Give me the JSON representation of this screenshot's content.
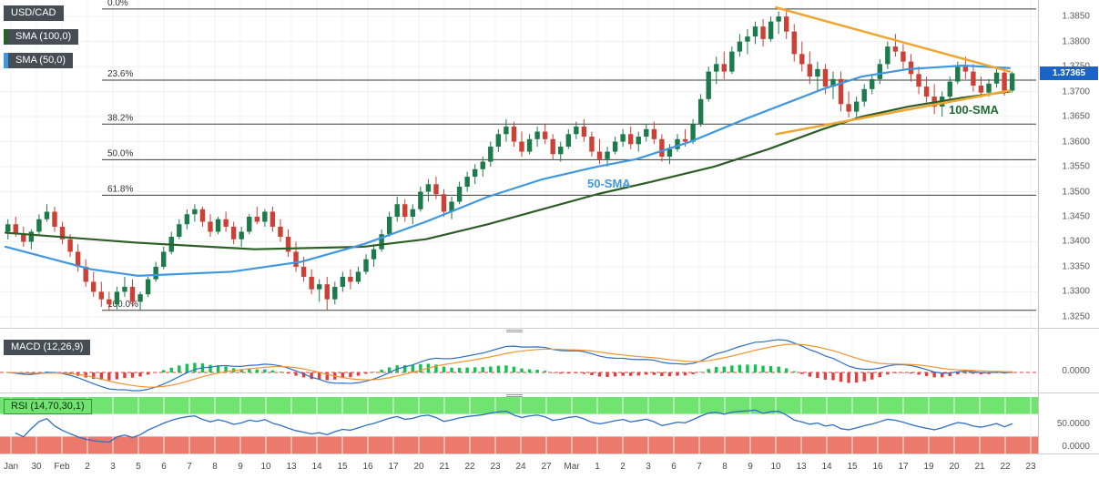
{
  "header": {
    "symbol_badge": "USD/CAD",
    "sma100_badge": "SMA (100,0)",
    "sma50_badge": "SMA (50,0)"
  },
  "overlays": {
    "sma50_line_label": "50-SMA",
    "sma100_line_label": "100-SMA"
  },
  "panels": {
    "macd": {
      "badge": "MACD (12,26,9)",
      "axis_zero": "0.0000"
    },
    "rsi": {
      "badge": "RSI (14,70,30,1)",
      "axis_mid": "50.0000",
      "axis_zero": "0.0000"
    }
  },
  "price_axis": {
    "labels": [
      "1.3850",
      "1.3800",
      "1.3750",
      "1.3700",
      "1.3650",
      "1.3600",
      "1.3550",
      "1.3500",
      "1.3450",
      "1.3400",
      "1.3350",
      "1.3300",
      "1.3250"
    ],
    "current_price_tag": "1.37365"
  },
  "colors": {
    "up": "#1d7a4a",
    "down": "#cc4036",
    "sma50": "#3f97e0",
    "sma100": "#2d5e26",
    "trendline": "#f0a432",
    "macd_line": "#2e6fc4",
    "macd_signal": "#ef9532",
    "hist_pos": "#12c24d",
    "hist_neg": "#e43d3d",
    "rsi_line": "#2e6fc4",
    "rsi_upper_band": "#71e371",
    "rsi_lower_band": "#eb7a6d",
    "price_tag_bg": "#1a64c8"
  },
  "chart_data": {
    "type": "candlestick",
    "title": "USD/CAD",
    "current_price": 1.37365,
    "y_range": [
      1.3228,
      1.3883
    ],
    "x_labels": [
      "Jan",
      "30",
      "Feb",
      "2",
      "3",
      "5",
      "6",
      "7",
      "8",
      "9",
      "10",
      "13",
      "14",
      "15",
      "16",
      "17",
      "20",
      "21",
      "22",
      "23",
      "24",
      "27",
      "Mar",
      "1",
      "2",
      "3",
      "6",
      "7",
      "8",
      "9",
      "10",
      "13",
      "14",
      "15",
      "16",
      "17",
      "19",
      "20",
      "21",
      "22",
      "23"
    ],
    "fib_retracement": [
      {
        "label": "0.0%",
        "price": 1.3865
      },
      {
        "label": "23.6%",
        "price": 1.3723
      },
      {
        "label": "38.2%",
        "price": 1.3635
      },
      {
        "label": "50.0%",
        "price": 1.3564
      },
      {
        "label": "61.8%",
        "price": 1.3493
      },
      {
        "label": "100.0%",
        "price": 1.3263
      }
    ],
    "candles_ohlc": [
      [
        1.342,
        1.3445,
        1.3405,
        1.3435
      ],
      [
        1.3435,
        1.345,
        1.341,
        1.3415
      ],
      [
        1.3415,
        1.343,
        1.339,
        1.34
      ],
      [
        1.34,
        1.3425,
        1.3385,
        1.342
      ],
      [
        1.342,
        1.3455,
        1.3415,
        1.3445
      ],
      [
        1.3445,
        1.3475,
        1.344,
        1.346
      ],
      [
        1.346,
        1.347,
        1.342,
        1.343
      ],
      [
        1.343,
        1.344,
        1.3395,
        1.3405
      ],
      [
        1.3405,
        1.3415,
        1.337,
        1.338
      ],
      [
        1.338,
        1.3395,
        1.334,
        1.335
      ],
      [
        1.335,
        1.3365,
        1.331,
        1.332
      ],
      [
        1.332,
        1.334,
        1.329,
        1.33
      ],
      [
        1.33,
        1.332,
        1.327,
        1.3285
      ],
      [
        1.3285,
        1.33,
        1.3262,
        1.3275
      ],
      [
        1.3275,
        1.331,
        1.3265,
        1.33
      ],
      [
        1.33,
        1.333,
        1.329,
        1.331
      ],
      [
        1.331,
        1.3325,
        1.327,
        1.328
      ],
      [
        1.328,
        1.33,
        1.3263,
        1.3295
      ],
      [
        1.3295,
        1.333,
        1.329,
        1.3325
      ],
      [
        1.3325,
        1.336,
        1.332,
        1.335
      ],
      [
        1.335,
        1.339,
        1.3345,
        1.338
      ],
      [
        1.338,
        1.342,
        1.3375,
        1.341
      ],
      [
        1.341,
        1.3445,
        1.3405,
        1.3435
      ],
      [
        1.3435,
        1.3465,
        1.3425,
        1.3455
      ],
      [
        1.3455,
        1.3475,
        1.344,
        1.3465
      ],
      [
        1.3465,
        1.347,
        1.343,
        1.344
      ],
      [
        1.344,
        1.3455,
        1.341,
        1.342
      ],
      [
        1.342,
        1.345,
        1.3415,
        1.3445
      ],
      [
        1.3445,
        1.346,
        1.342,
        1.343
      ],
      [
        1.343,
        1.344,
        1.3395,
        1.3405
      ],
      [
        1.3405,
        1.343,
        1.339,
        1.342
      ],
      [
        1.342,
        1.3455,
        1.3415,
        1.345
      ],
      [
        1.345,
        1.347,
        1.3435,
        1.344
      ],
      [
        1.344,
        1.3465,
        1.343,
        1.346
      ],
      [
        1.346,
        1.347,
        1.342,
        1.343
      ],
      [
        1.343,
        1.3445,
        1.34,
        1.341
      ],
      [
        1.341,
        1.3425,
        1.337,
        1.338
      ],
      [
        1.338,
        1.34,
        1.334,
        1.335
      ],
      [
        1.335,
        1.337,
        1.332,
        1.333
      ],
      [
        1.333,
        1.3345,
        1.3295,
        1.3305
      ],
      [
        1.3305,
        1.3325,
        1.328,
        1.3315
      ],
      [
        1.3315,
        1.333,
        1.3263,
        1.3285
      ],
      [
        1.3285,
        1.332,
        1.3275,
        1.331
      ],
      [
        1.331,
        1.334,
        1.33,
        1.333
      ],
      [
        1.333,
        1.3345,
        1.3305,
        1.332
      ],
      [
        1.332,
        1.335,
        1.3315,
        1.334
      ],
      [
        1.334,
        1.3375,
        1.3335,
        1.3365
      ],
      [
        1.3365,
        1.3395,
        1.335,
        1.3385
      ],
      [
        1.3385,
        1.3425,
        1.338,
        1.3415
      ],
      [
        1.3415,
        1.346,
        1.341,
        1.345
      ],
      [
        1.345,
        1.349,
        1.344,
        1.3475
      ],
      [
        1.3475,
        1.3485,
        1.344,
        1.345
      ],
      [
        1.345,
        1.3475,
        1.3435,
        1.3465
      ],
      [
        1.3465,
        1.351,
        1.346,
        1.35
      ],
      [
        1.35,
        1.3525,
        1.348,
        1.3515
      ],
      [
        1.3515,
        1.353,
        1.3485,
        1.3495
      ],
      [
        1.3495,
        1.3505,
        1.345,
        1.346
      ],
      [
        1.346,
        1.349,
        1.3445,
        1.348
      ],
      [
        1.348,
        1.352,
        1.3475,
        1.351
      ],
      [
        1.351,
        1.354,
        1.35,
        1.353
      ],
      [
        1.353,
        1.3555,
        1.3515,
        1.3545
      ],
      [
        1.3545,
        1.357,
        1.353,
        1.356
      ],
      [
        1.356,
        1.36,
        1.355,
        1.359
      ],
      [
        1.359,
        1.3625,
        1.358,
        1.3615
      ],
      [
        1.3615,
        1.3645,
        1.36,
        1.363
      ],
      [
        1.363,
        1.364,
        1.359,
        1.36
      ],
      [
        1.36,
        1.362,
        1.357,
        1.358
      ],
      [
        1.358,
        1.3615,
        1.3575,
        1.3605
      ],
      [
        1.3605,
        1.363,
        1.359,
        1.362
      ],
      [
        1.362,
        1.3635,
        1.3595,
        1.3605
      ],
      [
        1.3605,
        1.3615,
        1.3565,
        1.3575
      ],
      [
        1.3575,
        1.36,
        1.356,
        1.359
      ],
      [
        1.359,
        1.3625,
        1.3585,
        1.3615
      ],
      [
        1.3615,
        1.364,
        1.3605,
        1.363
      ],
      [
        1.363,
        1.3645,
        1.36,
        1.361
      ],
      [
        1.361,
        1.362,
        1.357,
        1.358
      ],
      [
        1.358,
        1.3605,
        1.3555,
        1.3565
      ],
      [
        1.3565,
        1.359,
        1.355,
        1.358
      ],
      [
        1.358,
        1.361,
        1.3575,
        1.36
      ],
      [
        1.36,
        1.3625,
        1.359,
        1.3615
      ],
      [
        1.3615,
        1.363,
        1.3585,
        1.3595
      ],
      [
        1.3595,
        1.362,
        1.358,
        1.361
      ],
      [
        1.361,
        1.3635,
        1.36,
        1.3625
      ],
      [
        1.3625,
        1.364,
        1.3595,
        1.3605
      ],
      [
        1.3605,
        1.3615,
        1.356,
        1.357
      ],
      [
        1.357,
        1.3595,
        1.3555,
        1.3585
      ],
      [
        1.3585,
        1.3615,
        1.358,
        1.3605
      ],
      [
        1.3605,
        1.3625,
        1.359,
        1.36
      ],
      [
        1.36,
        1.3645,
        1.3595,
        1.3635
      ],
      [
        1.3635,
        1.3695,
        1.363,
        1.3685
      ],
      [
        1.3685,
        1.375,
        1.368,
        1.374
      ],
      [
        1.374,
        1.377,
        1.3715,
        1.3755
      ],
      [
        1.3755,
        1.378,
        1.3725,
        1.374
      ],
      [
        1.374,
        1.379,
        1.3735,
        1.378
      ],
      [
        1.378,
        1.3815,
        1.377,
        1.38
      ],
      [
        1.38,
        1.3825,
        1.3775,
        1.381
      ],
      [
        1.381,
        1.384,
        1.3795,
        1.383
      ],
      [
        1.383,
        1.3845,
        1.379,
        1.3805
      ],
      [
        1.3805,
        1.385,
        1.38,
        1.384
      ],
      [
        1.384,
        1.386,
        1.3815,
        1.385
      ],
      [
        1.385,
        1.3862,
        1.3805,
        1.382
      ],
      [
        1.382,
        1.3835,
        1.376,
        1.3775
      ],
      [
        1.3775,
        1.38,
        1.374,
        1.3755
      ],
      [
        1.3755,
        1.378,
        1.3715,
        1.373
      ],
      [
        1.373,
        1.376,
        1.37,
        1.3745
      ],
      [
        1.3745,
        1.3755,
        1.3695,
        1.371
      ],
      [
        1.371,
        1.374,
        1.3685,
        1.3725
      ],
      [
        1.3725,
        1.374,
        1.366,
        1.3675
      ],
      [
        1.3675,
        1.37,
        1.3648,
        1.366
      ],
      [
        1.366,
        1.369,
        1.3645,
        1.368
      ],
      [
        1.368,
        1.3715,
        1.367,
        1.3705
      ],
      [
        1.3705,
        1.3735,
        1.3695,
        1.3725
      ],
      [
        1.3725,
        1.3765,
        1.3715,
        1.3755
      ],
      [
        1.3755,
        1.38,
        1.3745,
        1.379
      ],
      [
        1.379,
        1.3815,
        1.377,
        1.378
      ],
      [
        1.378,
        1.3795,
        1.3745,
        1.376
      ],
      [
        1.376,
        1.3775,
        1.372,
        1.3735
      ],
      [
        1.3735,
        1.375,
        1.3695,
        1.371
      ],
      [
        1.371,
        1.373,
        1.3675,
        1.369
      ],
      [
        1.369,
        1.3715,
        1.3655,
        1.367
      ],
      [
        1.367,
        1.37,
        1.365,
        1.369
      ],
      [
        1.369,
        1.373,
        1.3685,
        1.372
      ],
      [
        1.372,
        1.376,
        1.3715,
        1.375
      ],
      [
        1.375,
        1.377,
        1.3725,
        1.374
      ],
      [
        1.374,
        1.3755,
        1.37,
        1.3712
      ],
      [
        1.3712,
        1.373,
        1.3688,
        1.3698
      ],
      [
        1.3698,
        1.3725,
        1.369,
        1.3716
      ],
      [
        1.3716,
        1.3748,
        1.3708,
        1.3738
      ],
      [
        1.3738,
        1.375,
        1.3692,
        1.3702
      ],
      [
        1.3702,
        1.374,
        1.3698,
        1.37365
      ]
    ],
    "sma50_points": [
      [
        0,
        1.339
      ],
      [
        11,
        1.3345
      ],
      [
        17,
        1.3332
      ],
      [
        29,
        1.334
      ],
      [
        38,
        1.336
      ],
      [
        46,
        1.3395
      ],
      [
        54,
        1.344
      ],
      [
        62,
        1.349
      ],
      [
        69,
        1.3525
      ],
      [
        76,
        1.355
      ],
      [
        81,
        1.3565
      ],
      [
        88,
        1.36
      ],
      [
        95,
        1.3645
      ],
      [
        100,
        1.3675
      ],
      [
        105,
        1.3705
      ],
      [
        110,
        1.373
      ],
      [
        116,
        1.3745
      ],
      [
        123,
        1.3752
      ],
      [
        129,
        1.3747
      ]
    ],
    "sma100_points": [
      [
        0,
        1.3418
      ],
      [
        17,
        1.3398
      ],
      [
        32,
        1.3385
      ],
      [
        46,
        1.339
      ],
      [
        54,
        1.3405
      ],
      [
        62,
        1.3435
      ],
      [
        69,
        1.3465
      ],
      [
        76,
        1.3495
      ],
      [
        83,
        1.352
      ],
      [
        91,
        1.355
      ],
      [
        98,
        1.3585
      ],
      [
        105,
        1.3625
      ],
      [
        110,
        1.365
      ],
      [
        116,
        1.367
      ],
      [
        123,
        1.3688
      ],
      [
        129,
        1.37
      ]
    ],
    "trendlines": [
      {
        "name": "wedge-upper-trendline",
        "points": [
          [
            99,
            1.3868
          ],
          [
            129,
            1.374
          ]
        ]
      },
      {
        "name": "wedge-lower-trendline",
        "points": [
          [
            99,
            1.3615
          ],
          [
            129,
            1.3702
          ]
        ]
      }
    ],
    "indicators": {
      "macd": {
        "fast": 12,
        "slow": 26,
        "signal": 9
      },
      "rsi": {
        "period": 14,
        "upper": 70,
        "lower": 30
      }
    }
  }
}
